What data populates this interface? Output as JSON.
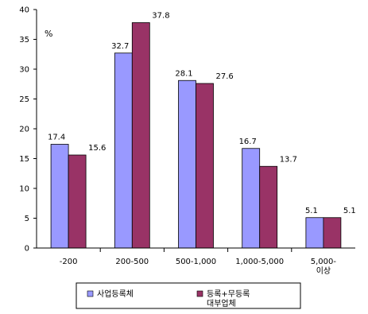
{
  "chart_data": {
    "type": "bar",
    "unit": "%",
    "categories": [
      [
        "-200"
      ],
      [
        "200-500"
      ],
      [
        "500-1,000"
      ],
      [
        "1,000-5,000"
      ],
      [
        "5,000-",
        "이상"
      ]
    ],
    "series": [
      {
        "name": "사업등록체",
        "color": "#9999ff",
        "values": [
          17.4,
          32.7,
          28.1,
          16.7,
          5.1
        ],
        "labels": [
          "17.4",
          "32.7",
          "28.1",
          "16.7",
          "5.1"
        ]
      },
      {
        "name": "등록+무등록 대부업체",
        "color": "#993366",
        "values": [
          15.6,
          37.8,
          27.6,
          13.7,
          5.1
        ],
        "labels": [
          "15.6",
          "37.8",
          "27.6",
          "13.7",
          "5.1"
        ]
      }
    ],
    "ylim": [
      0,
      40
    ],
    "yticks": [
      "0",
      "5",
      "10",
      "15",
      "20",
      "25",
      "30",
      "35",
      "40"
    ],
    "grid": false,
    "legend_position": "bottom"
  }
}
